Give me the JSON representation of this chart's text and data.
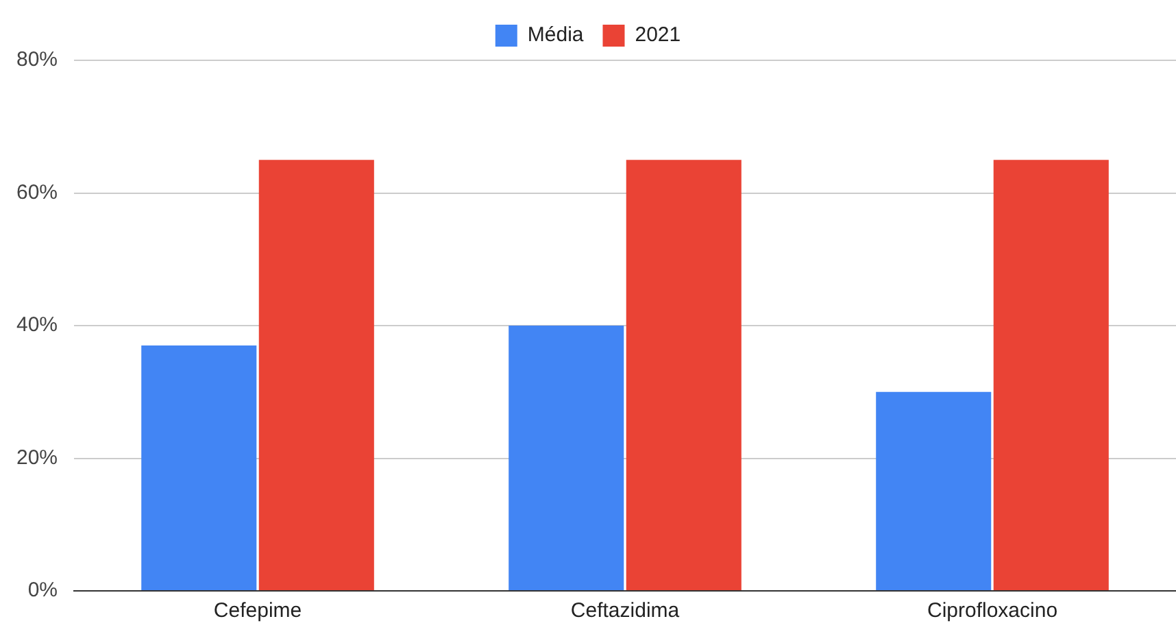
{
  "chart_data": {
    "type": "bar",
    "categories": [
      "Cefepime",
      "Ceftazidima",
      "Ciprofloxacino"
    ],
    "series": [
      {
        "name": "Média",
        "color": "#4285f4",
        "values": [
          37,
          40,
          30
        ]
      },
      {
        "name": "2021",
        "color": "#ea4335",
        "values": [
          65,
          65,
          65
        ]
      }
    ],
    "ylim": [
      0,
      80
    ],
    "yticks": [
      {
        "value": 0,
        "label": "0%"
      },
      {
        "value": 20,
        "label": "20%"
      },
      {
        "value": 40,
        "label": "40%"
      },
      {
        "value": 60,
        "label": "60%"
      },
      {
        "value": 80,
        "label": "80%"
      }
    ],
    "grid": "y",
    "legend": "top"
  }
}
